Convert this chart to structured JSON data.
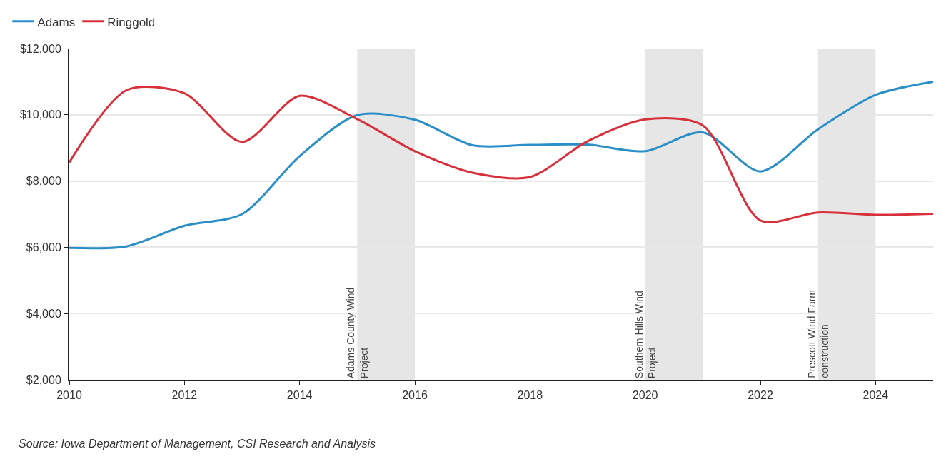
{
  "chart_data": {
    "type": "line",
    "x": [
      2010,
      2011,
      2012,
      2013,
      2014,
      2015,
      2016,
      2017,
      2018,
      2019,
      2020,
      2021,
      2022,
      2023,
      2024,
      2025
    ],
    "series": [
      {
        "name": "Adams",
        "color": "#2a8fc7",
        "values": [
          5980,
          6030,
          6650,
          7000,
          8750,
          9990,
          9850,
          9080,
          9090,
          9100,
          8900,
          9470,
          8290,
          9560,
          10600,
          11000
        ]
      },
      {
        "name": "Ringgold",
        "color": "#d7303b",
        "values": [
          8560,
          10750,
          10650,
          9180,
          10570,
          9870,
          8900,
          8250,
          8120,
          9200,
          9860,
          9680,
          6810,
          7050,
          6980,
          7010
        ]
      }
    ],
    "xlim": [
      2010,
      2025
    ],
    "xticks": [
      2010,
      2012,
      2014,
      2016,
      2018,
      2020,
      2022,
      2024
    ],
    "ylim": [
      2000,
      12000
    ],
    "yticks": [
      {
        "value": 2000,
        "label": "$2,000"
      },
      {
        "value": 4000,
        "label": "$4,000"
      },
      {
        "value": 6000,
        "label": "$6,000"
      },
      {
        "value": 8000,
        "label": "$8,000"
      },
      {
        "value": 10000,
        "label": "$10,000"
      },
      {
        "value": 12000,
        "label": "$12,000"
      }
    ],
    "bands": [
      {
        "axis": "x",
        "from": 2015,
        "to": 2016,
        "label": "Adams County Wind\nProject",
        "color": "#e6e6e6"
      },
      {
        "axis": "x",
        "from": 2020,
        "to": 2021,
        "label": "Southern Hills Wind\nProject",
        "color": "#e6e6e6"
      },
      {
        "axis": "x",
        "from": 2023,
        "to": 2024,
        "label": "Prescott Wind Farm\nconstruction",
        "color": "#e6e6e6"
      }
    ],
    "grid": "y",
    "legend": "top left",
    "marker": "none",
    "line_style": "solid",
    "annotations": [
      "Source: Iowa Department of Management, CSI Research and Analysis"
    ]
  }
}
